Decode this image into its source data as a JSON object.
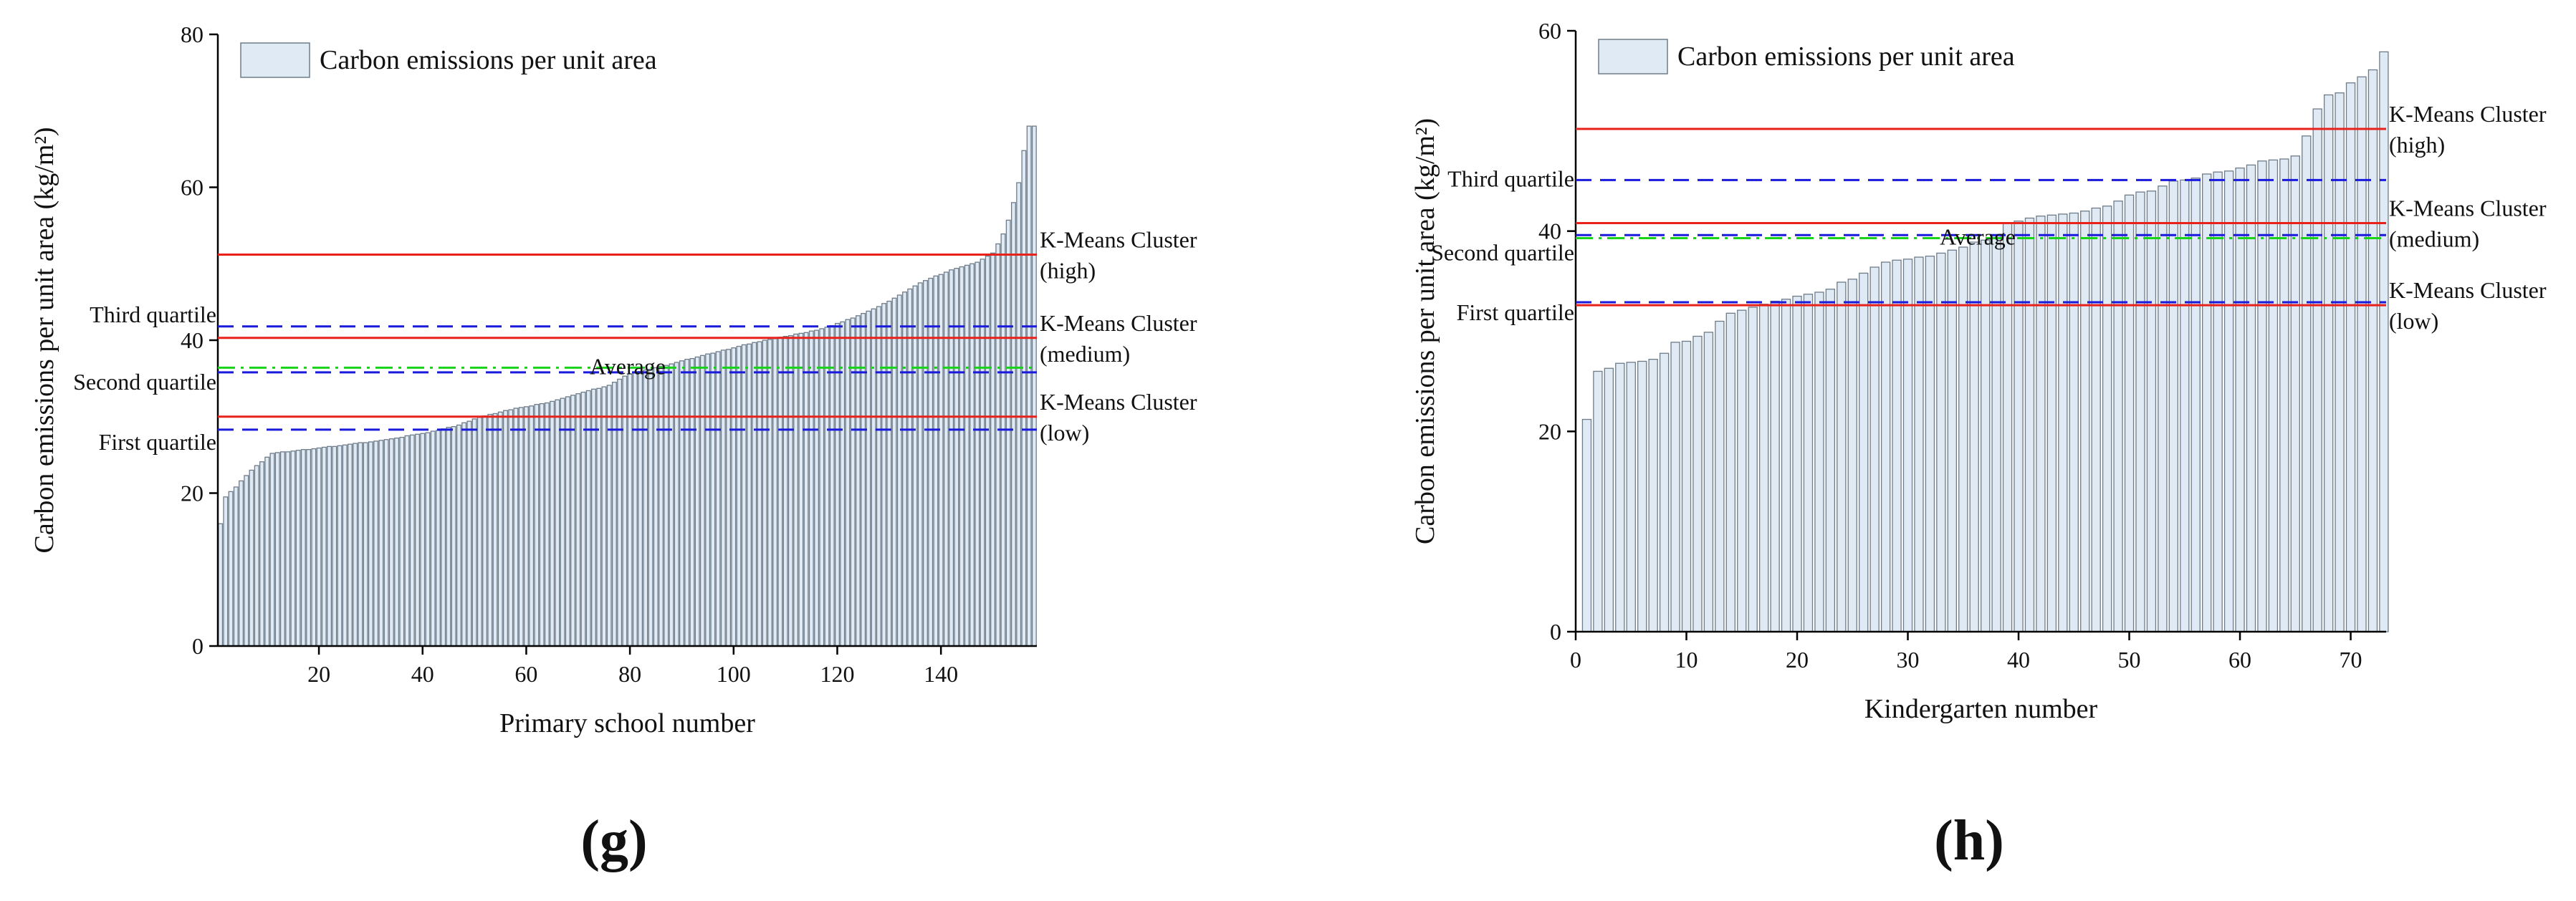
{
  "colors": {
    "bar_fill": "#dfeaf4",
    "bar_stroke": "#6e7c8a",
    "axis": "#000000",
    "kmeans_line": "#e8211b",
    "quartile_line": "#1a1adc",
    "average_line": "#18d418"
  },
  "panels": [
    {
      "id": "g",
      "label": "(g)",
      "chart_data": {
        "type": "bar",
        "title": "",
        "xlabel": "Primary school number",
        "ylabel": "Carbon emissions per unit area (kg/m²)",
        "legend_label": "Carbon emissions per unit area",
        "legend_position": "top-left",
        "xlim": [
          0.5,
          158.5
        ],
        "ylim": [
          0,
          80
        ],
        "xticks": [
          20,
          40,
          60,
          80,
          100,
          120,
          140
        ],
        "xtick_labels": [
          "20",
          "40",
          "60",
          "80",
          "100",
          "120",
          "140"
        ],
        "yticks": [
          0,
          20,
          40,
          60,
          80
        ],
        "ytick_labels": [
          "0",
          "20",
          "40",
          "60",
          "80"
        ],
        "n_bars": 158,
        "value_range": [
          16,
          68
        ],
        "sorted_ascending": true,
        "reference_lines": [
          {
            "name": "kmeans-high",
            "kind": "kmeans",
            "y": 51.2,
            "label": [
              "K-Means Cluster",
              "(high)"
            ],
            "side": "right"
          },
          {
            "name": "kmeans-medium",
            "kind": "kmeans",
            "y": 40.3,
            "label": [
              "K-Means Cluster",
              "(medium)"
            ],
            "side": "right"
          },
          {
            "name": "kmeans-low",
            "kind": "kmeans",
            "y": 30.0,
            "label": [
              "K-Means Cluster",
              "(low)"
            ],
            "side": "right"
          },
          {
            "name": "third-quartile",
            "kind": "quartile",
            "y": 41.8,
            "label": [
              "Third quartile"
            ],
            "side": "left"
          },
          {
            "name": "second-quartile",
            "kind": "quartile",
            "y": 35.8,
            "label": [
              "Second quartile"
            ],
            "side": "left"
          },
          {
            "name": "first-quartile",
            "kind": "quartile",
            "y": 28.3,
            "label": [
              "First quartile"
            ],
            "side": "left"
          },
          {
            "name": "average",
            "kind": "average",
            "y": 36.4,
            "label": [
              "Average"
            ],
            "side": "center"
          }
        ]
      }
    },
    {
      "id": "h",
      "label": "(h)",
      "chart_data": {
        "type": "bar",
        "title": "",
        "xlabel": "Kindergarten number",
        "ylabel": "Carbon emissions per unit area (kg/m²)",
        "legend_label": "Carbon emissions per unit area",
        "legend_position": "top-left",
        "xlim": [
          0,
          73.2
        ],
        "ylim": [
          0,
          60
        ],
        "xticks": [
          0,
          10,
          20,
          30,
          40,
          50,
          60,
          70
        ],
        "xtick_labels": [
          "0",
          "10",
          "20",
          "30",
          "40",
          "50",
          "60",
          "70"
        ],
        "yticks": [
          0,
          20,
          40,
          60
        ],
        "ytick_labels": [
          "0",
          "20",
          "40",
          "60"
        ],
        "values": [
          21.2,
          26.0,
          26.3,
          26.8,
          26.9,
          27.0,
          27.2,
          27.8,
          28.9,
          29.0,
          29.5,
          29.9,
          31.0,
          31.8,
          32.1,
          32.4,
          32.7,
          33.0,
          33.2,
          33.5,
          33.7,
          33.9,
          34.2,
          34.9,
          35.2,
          35.8,
          36.4,
          36.9,
          37.1,
          37.2,
          37.4,
          37.5,
          37.8,
          38.1,
          38.4,
          38.9,
          39.1,
          39.6,
          40.8,
          41.0,
          41.3,
          41.5,
          41.6,
          41.7,
          41.8,
          42.0,
          42.3,
          42.5,
          43.0,
          43.6,
          43.9,
          44.0,
          44.5,
          45.0,
          45.1,
          45.3,
          45.7,
          45.9,
          46.0,
          46.3,
          46.6,
          47.0,
          47.1,
          47.2,
          47.5,
          49.5,
          52.2,
          53.6,
          53.8,
          54.8,
          55.4,
          56.1,
          57.9
        ],
        "reference_lines": [
          {
            "name": "kmeans-high",
            "kind": "kmeans",
            "y": 50.2,
            "label": [
              "K-Means Cluster",
              "(high)"
            ],
            "side": "right"
          },
          {
            "name": "kmeans-medium",
            "kind": "kmeans",
            "y": 40.8,
            "label": [
              "K-Means Cluster",
              "(medium)"
            ],
            "side": "right"
          },
          {
            "name": "kmeans-low",
            "kind": "kmeans",
            "y": 32.6,
            "label": [
              "K-Means Cluster",
              "(low)"
            ],
            "side": "right"
          },
          {
            "name": "third-quartile",
            "kind": "quartile",
            "y": 45.1,
            "label": [
              "Third quartile"
            ],
            "side": "left"
          },
          {
            "name": "second-quartile",
            "kind": "quartile",
            "y": 39.6,
            "label": [
              "Second quartile"
            ],
            "side": "left"
          },
          {
            "name": "first-quartile",
            "kind": "quartile",
            "y": 32.9,
            "label": [
              "First quartile"
            ],
            "side": "left"
          },
          {
            "name": "average",
            "kind": "average",
            "y": 39.3,
            "label": [
              "Average"
            ],
            "side": "center"
          }
        ]
      }
    }
  ]
}
